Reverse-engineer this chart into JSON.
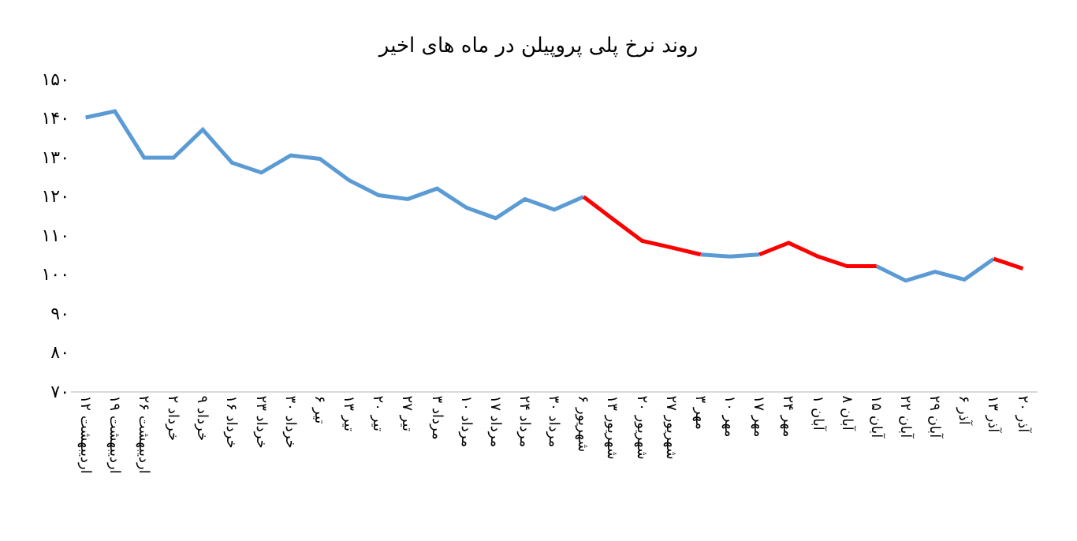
{
  "chart_data": {
    "type": "line",
    "title": "روند نرخ پلی پروپیلن در ماه های اخیر",
    "categories": [
      "۱۲ اردیبهشت",
      "۱۹ اردیبهشت",
      "۲۶ اردیبهشت",
      "۲ خرداد",
      "۹ خرداد",
      "۱۶ خرداد",
      "۲۳ خرداد",
      "۳۰ خرداد",
      "۶ تیر",
      "۱۳ تیر",
      "۲۰ تیر",
      "۲۷ تیر",
      "۳ مرداد",
      "۱۰ مرداد",
      "۱۷ مرداد",
      "۲۴ مرداد",
      "۳۰ مرداد",
      "۶ شهریور",
      "۱۳ شهریور",
      "۲۰ شهریور",
      "۲۷ شهریور",
      "۳ مهر",
      "۱۰ مهر",
      "۱۷ مهر",
      "۲۴ مهر",
      "۱ آبان",
      "۸ آبان",
      "۱۵ آبان",
      "۲۲ آبان",
      "۲۹ آبان",
      "۶ آذر",
      "۱۳ آذر",
      "۲۰ آذر"
    ],
    "series": [
      {
        "color": "#5b9bd5",
        "values": [
          140.1,
          141.7,
          129.8,
          129.8,
          137,
          128.5,
          126,
          130.4,
          129.5,
          124,
          120.2,
          119.2,
          121.9,
          117,
          114.3,
          119.2,
          116.5,
          119.8,
          null,
          null,
          null,
          105,
          104.5,
          105,
          null,
          null,
          null,
          102,
          98.3,
          100.6,
          98.6,
          103.9,
          null
        ]
      },
      {
        "color": "#ff0000",
        "values": [
          null,
          null,
          null,
          null,
          null,
          null,
          null,
          null,
          null,
          null,
          null,
          null,
          null,
          null,
          null,
          null,
          null,
          119.8,
          114.1,
          108.5,
          106.8,
          105,
          null,
          105,
          108,
          104.5,
          102,
          102,
          null,
          null,
          null,
          103.9,
          101.4
        ]
      }
    ],
    "ylim": [
      70,
      150
    ],
    "yticks": [
      {
        "value": 70,
        "label": "۷۰"
      },
      {
        "value": 80,
        "label": "۸۰"
      },
      {
        "value": 90,
        "label": "۹۰"
      },
      {
        "value": 100,
        "label": "۱۰۰"
      },
      {
        "value": 110,
        "label": "۱۱۰"
      },
      {
        "value": 120,
        "label": "۱۲۰"
      },
      {
        "value": 130,
        "label": "۱۳۰"
      },
      {
        "value": 140,
        "label": "۱۴۰"
      },
      {
        "value": 150,
        "label": "۱۵۰"
      }
    ],
    "marker": "none",
    "line_style": "solid"
  }
}
